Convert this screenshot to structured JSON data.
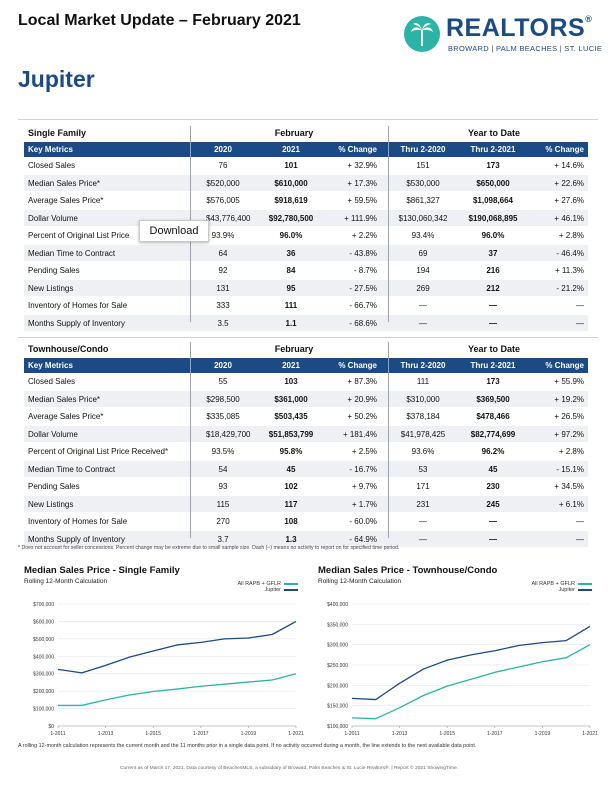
{
  "header": {
    "title": "Local Market Update – February 2021",
    "city": "Jupiter",
    "logo": {
      "word": "REALTORS",
      "sub": "BROWARD | PALM BEACHES | ST. LUCIE",
      "icon": "palm-tree-icon"
    }
  },
  "colors": {
    "navy": "#1c4a83",
    "teal": "#2bb3a5",
    "stripe": "#eef0f3"
  },
  "single_family": {
    "section": "Single Family",
    "feb_label": "February",
    "ytd_label": "Year to Date",
    "headers": [
      "Key Metrics",
      "2020",
      "2021",
      "% Change",
      "Thru 2-2020",
      "Thru 2-2021",
      "% Change"
    ],
    "rows": [
      [
        "Closed Sales",
        "76",
        "101",
        "+ 32.9%",
        "151",
        "173",
        "+ 14.6%"
      ],
      [
        "Median Sales Price*",
        "$520,000",
        "$610,000",
        "+ 17.3%",
        "$530,000",
        "$650,000",
        "+ 22.6%"
      ],
      [
        "Average Sales Price*",
        "$576,005",
        "$918,619",
        "+ 59.5%",
        "$861,327",
        "$1,098,664",
        "+ 27.6%"
      ],
      [
        "Dollar Volume",
        "$43,776,400",
        "$92,780,500",
        "+ 111.9%",
        "$130,060,342",
        "$190,068,895",
        "+ 46.1%"
      ],
      [
        "Percent of Original List Price",
        "93.9%",
        "96.0%",
        "+ 2.2%",
        "93.4%",
        "96.0%",
        "+ 2.8%"
      ],
      [
        "Median Time to Contract",
        "64",
        "36",
        "- 43.8%",
        "69",
        "37",
        "- 46.4%"
      ],
      [
        "Pending Sales",
        "92",
        "84",
        "- 8.7%",
        "194",
        "216",
        "+ 11.3%"
      ],
      [
        "New Listings",
        "131",
        "95",
        "- 27.5%",
        "269",
        "212",
        "- 21.2%"
      ],
      [
        "Inventory of Homes for Sale",
        "333",
        "111",
        "- 66.7%",
        "—",
        "—",
        "—"
      ],
      [
        "Months Supply of Inventory",
        "3.5",
        "1.1",
        "- 68.6%",
        "—",
        "—",
        "—"
      ]
    ]
  },
  "townhouse": {
    "section": "Townhouse/Condo",
    "feb_label": "February",
    "ytd_label": "Year to Date",
    "headers": [
      "Key Metrics",
      "2020",
      "2021",
      "% Change",
      "Thru 2-2020",
      "Thru 2-2021",
      "% Change"
    ],
    "rows": [
      [
        "Closed Sales",
        "55",
        "103",
        "+ 87.3%",
        "111",
        "173",
        "+ 55.9%"
      ],
      [
        "Median Sales Price*",
        "$298,500",
        "$361,000",
        "+ 20.9%",
        "$310,000",
        "$369,500",
        "+ 19.2%"
      ],
      [
        "Average Sales Price*",
        "$335,085",
        "$503,435",
        "+ 50.2%",
        "$378,184",
        "$478,466",
        "+ 26.5%"
      ],
      [
        "Dollar Volume",
        "$18,429,700",
        "$51,853,799",
        "+ 181.4%",
        "$41,978,425",
        "$82,774,699",
        "+ 97.2%"
      ],
      [
        "Percent of Original List Price Received*",
        "93.5%",
        "95.8%",
        "+ 2.5%",
        "93.6%",
        "96.2%",
        "+ 2.8%"
      ],
      [
        "Median Time to Contract",
        "54",
        "45",
        "- 16.7%",
        "53",
        "45",
        "- 15.1%"
      ],
      [
        "Pending Sales",
        "93",
        "102",
        "+ 9.7%",
        "171",
        "230",
        "+ 34.5%"
      ],
      [
        "New Listings",
        "115",
        "117",
        "+ 1.7%",
        "231",
        "245",
        "+ 6.1%"
      ],
      [
        "Inventory of Homes for Sale",
        "270",
        "108",
        "- 60.0%",
        "—",
        "—",
        "—"
      ],
      [
        "Months Supply of Inventory",
        "3.7",
        "1.3",
        "- 64.9%",
        "—",
        "—",
        "—"
      ]
    ]
  },
  "download_button": "Download",
  "footnote": "* Does not account for seller concessions. Percent change may be extreme due to small sample size. Dash (–) means no activity to report on for specified time period.",
  "chart_data": [
    {
      "type": "line",
      "title": "Median Sales Price - Single Family",
      "subtitle": "Rolling 12-Month Calculation",
      "legend": [
        "All RAPB + GFLR",
        "Jupiter"
      ],
      "legend_position": "top-right",
      "x_ticks": [
        "1-2011",
        "1-2013",
        "1-2015",
        "1-2017",
        "1-2019",
        "1-2021"
      ],
      "y_ticks": [
        "$0",
        "$100,000",
        "$200,000",
        "$300,000",
        "$400,000",
        "$500,000",
        "$600,000",
        "$700,000"
      ],
      "ylim": [
        0,
        700000
      ],
      "x": [
        2011.0,
        2012.0,
        2013.0,
        2014.0,
        2015.0,
        2016.0,
        2017.0,
        2018.0,
        2019.0,
        2020.0,
        2021.0
      ],
      "series": [
        {
          "name": "All RAPB + GFLR",
          "color": "#2bb3a5",
          "values": [
            118000,
            118000,
            150000,
            178000,
            198000,
            212000,
            228000,
            240000,
            252000,
            264000,
            300000
          ]
        },
        {
          "name": "Jupiter",
          "color": "#1c4a83",
          "values": [
            325000,
            305000,
            348000,
            395000,
            430000,
            465000,
            480000,
            500000,
            505000,
            525000,
            600000
          ]
        }
      ]
    },
    {
      "type": "line",
      "title": "Median Sales Price - Townhouse/Condo",
      "subtitle": "Rolling 12-Month Calculation",
      "legend": [
        "All RAPB + GFLR",
        "Jupiter"
      ],
      "legend_position": "top-right",
      "x_ticks": [
        "1-2011",
        "1-2013",
        "1-2015",
        "1-2017",
        "1-2019",
        "1-2021"
      ],
      "y_ticks": [
        "$100,000",
        "$150,000",
        "$200,000",
        "$250,000",
        "$300,000",
        "$350,000",
        "$400,000"
      ],
      "ylim": [
        100000,
        400000
      ],
      "x": [
        2011.0,
        2012.0,
        2013.0,
        2014.0,
        2015.0,
        2016.0,
        2017.0,
        2018.0,
        2019.0,
        2020.0,
        2021.0
      ],
      "series": [
        {
          "name": "All RAPB + GFLR",
          "color": "#2bb3a5",
          "values": [
            120000,
            118000,
            145000,
            175000,
            198000,
            215000,
            232000,
            245000,
            258000,
            268000,
            300000
          ]
        },
        {
          "name": "Jupiter",
          "color": "#1c4a83",
          "values": [
            168000,
            165000,
            205000,
            240000,
            262000,
            275000,
            285000,
            298000,
            305000,
            310000,
            345000
          ]
        }
      ]
    }
  ],
  "rolling_note": "A rolling 12-month calculation represents the current month and the 11 months prior in a single data point. If no activity occurred during a month, the line extends to the next available data point.",
  "current_note": "Current as of March 17, 2021. Data courtesy of BeachesMLS, a subsidiary of Broward, Palm Beaches & St. Lucie Realtors®. | Report © 2021 ShowingTime."
}
